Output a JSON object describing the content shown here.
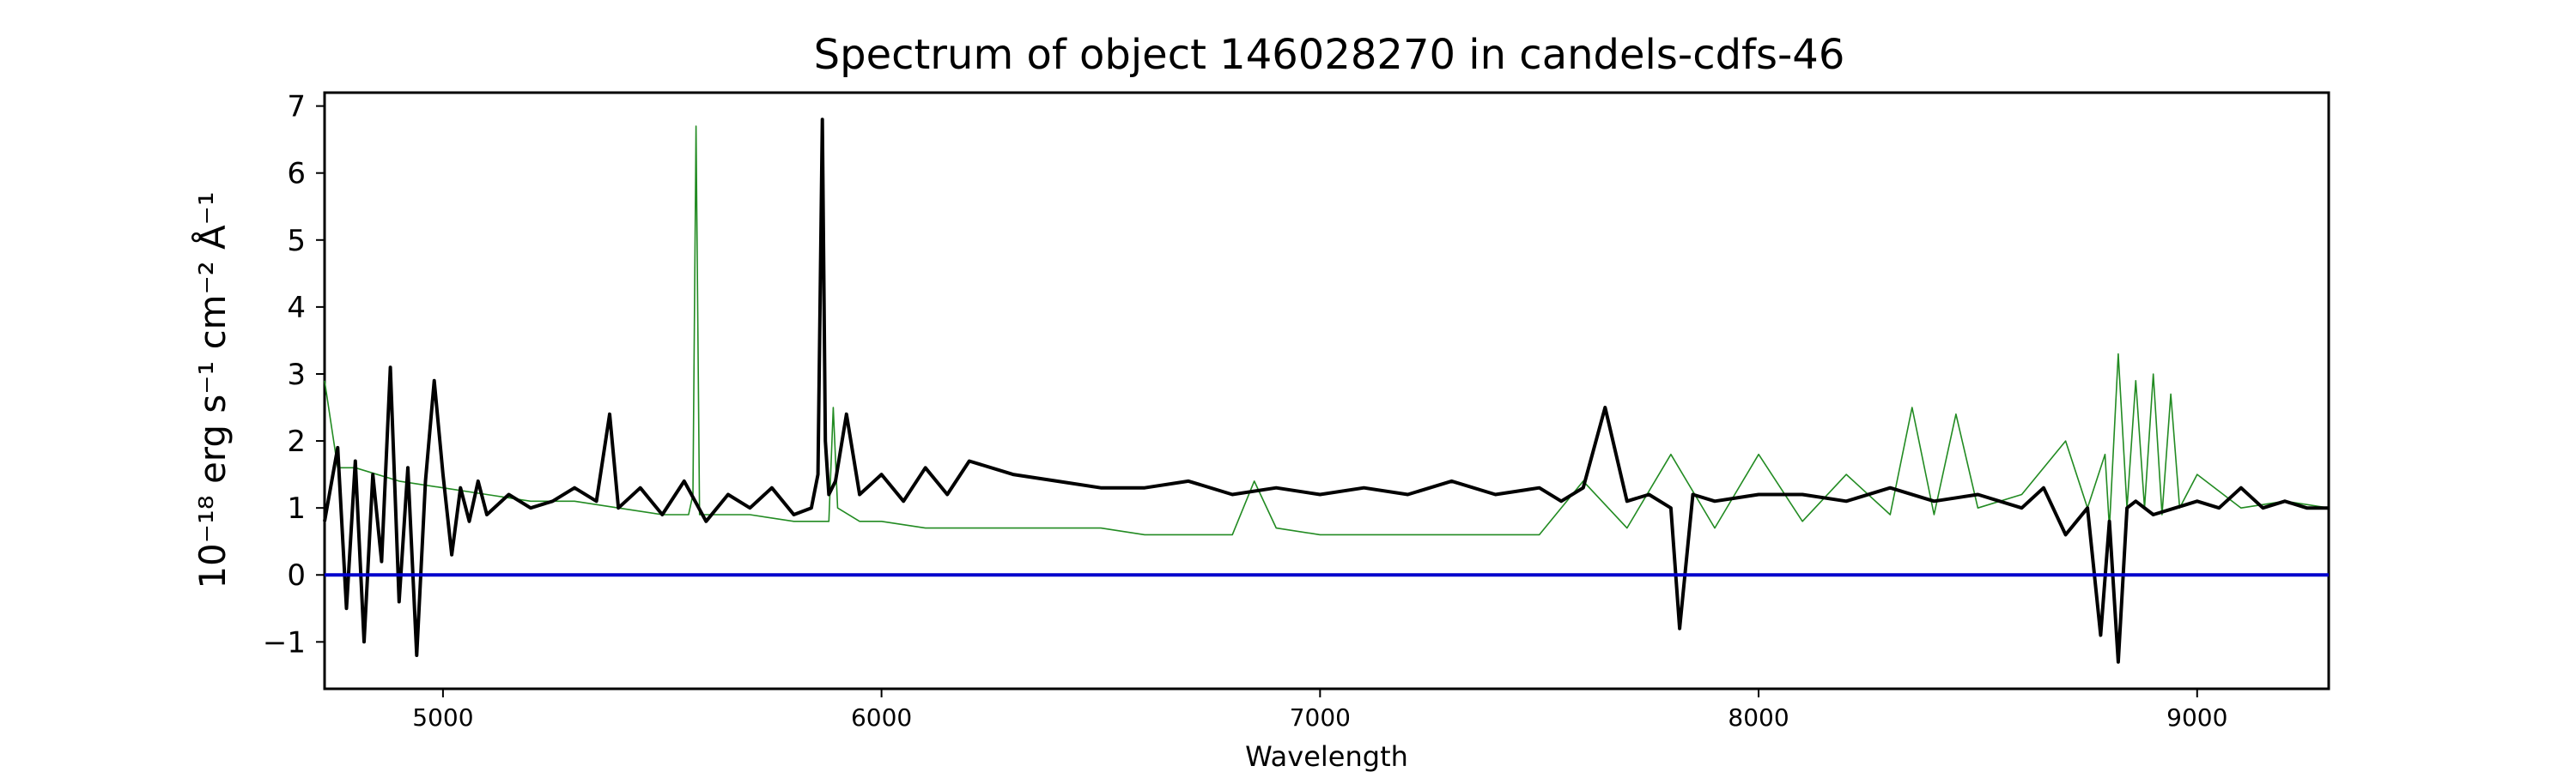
{
  "chart_data": {
    "type": "line",
    "title": "Spectrum of object 146028270 in candels-cdfs-46",
    "xlabel": "Wavelength",
    "ylabel": "10⁻¹⁸ erg s⁻¹ cm⁻² Å⁻¹",
    "xlim": [
      4730,
      9300
    ],
    "ylim": [
      -1.7,
      7.2
    ],
    "xticks": [
      5000,
      6000,
      7000,
      8000,
      9000
    ],
    "yticks": [
      -1,
      0,
      1,
      2,
      3,
      4,
      5,
      6,
      7
    ],
    "grid": false,
    "colors": {
      "spectrum": "#000000",
      "sky": "#228b22",
      "zero": "#0000cc"
    },
    "series": [
      {
        "key": "spectrum",
        "x": [
          4730,
          4760,
          4780,
          4800,
          4820,
          4840,
          4860,
          4880,
          4900,
          4920,
          4940,
          4960,
          4980,
          5000,
          5020,
          5040,
          5060,
          5080,
          5100,
          5150,
          5200,
          5250,
          5300,
          5350,
          5380,
          5400,
          5450,
          5500,
          5550,
          5600,
          5650,
          5700,
          5750,
          5800,
          5840,
          5855,
          5865,
          5872,
          5880,
          5895,
          5920,
          5950,
          6000,
          6050,
          6100,
          6150,
          6200,
          6300,
          6400,
          6500,
          6600,
          6700,
          6800,
          6900,
          7000,
          7100,
          7200,
          7300,
          7400,
          7500,
          7550,
          7600,
          7650,
          7700,
          7750,
          7800,
          7820,
          7850,
          7900,
          8000,
          8100,
          8200,
          8300,
          8400,
          8500,
          8600,
          8650,
          8700,
          8750,
          8780,
          8800,
          8820,
          8840,
          8860,
          8900,
          8950,
          9000,
          9050,
          9100,
          9150,
          9200,
          9250,
          9300
        ],
        "y": [
          0.8,
          1.9,
          -0.5,
          1.7,
          -1.0,
          1.5,
          0.2,
          3.1,
          -0.4,
          1.6,
          -1.2,
          1.4,
          2.9,
          1.5,
          0.3,
          1.3,
          0.8,
          1.4,
          0.9,
          1.2,
          1.0,
          1.1,
          1.3,
          1.1,
          2.4,
          1.0,
          1.3,
          0.9,
          1.4,
          0.8,
          1.2,
          1.0,
          1.3,
          0.9,
          1.0,
          1.5,
          6.8,
          2.0,
          1.2,
          1.4,
          2.4,
          1.2,
          1.5,
          1.1,
          1.6,
          1.2,
          1.7,
          1.5,
          1.4,
          1.3,
          1.3,
          1.4,
          1.2,
          1.3,
          1.2,
          1.3,
          1.2,
          1.4,
          1.2,
          1.3,
          1.1,
          1.3,
          2.5,
          1.1,
          1.2,
          1.0,
          -0.8,
          1.2,
          1.1,
          1.2,
          1.2,
          1.1,
          1.3,
          1.1,
          1.2,
          1.0,
          1.3,
          0.6,
          1.0,
          -0.9,
          0.8,
          -1.3,
          1.0,
          1.1,
          0.9,
          1.0,
          1.1,
          1.0,
          1.3,
          1.0,
          1.1,
          1.0,
          1.0
        ]
      },
      {
        "key": "sky",
        "x": [
          4730,
          4760,
          4800,
          4900,
          5000,
          5100,
          5200,
          5300,
          5400,
          5500,
          5560,
          5570,
          5577,
          5585,
          5600,
          5700,
          5800,
          5880,
          5890,
          5900,
          5950,
          6000,
          6100,
          6200,
          6300,
          6400,
          6500,
          6600,
          6700,
          6800,
          6850,
          6900,
          7000,
          7100,
          7200,
          7300,
          7400,
          7500,
          7600,
          7700,
          7800,
          7900,
          8000,
          8100,
          8200,
          8300,
          8350,
          8400,
          8450,
          8500,
          8600,
          8700,
          8750,
          8790,
          8800,
          8820,
          8840,
          8860,
          8880,
          8900,
          8920,
          8940,
          8960,
          9000,
          9100,
          9200,
          9300
        ],
        "y": [
          2.9,
          1.6,
          1.6,
          1.4,
          1.3,
          1.2,
          1.1,
          1.1,
          1.0,
          0.9,
          0.9,
          1.2,
          6.7,
          0.9,
          0.9,
          0.9,
          0.8,
          0.8,
          2.5,
          1.0,
          0.8,
          0.8,
          0.7,
          0.7,
          0.7,
          0.7,
          0.7,
          0.6,
          0.6,
          0.6,
          1.4,
          0.7,
          0.6,
          0.6,
          0.6,
          0.6,
          0.6,
          0.6,
          1.4,
          0.7,
          1.8,
          0.7,
          1.8,
          0.8,
          1.5,
          0.9,
          2.5,
          0.9,
          2.4,
          1.0,
          1.2,
          2.0,
          1.0,
          1.8,
          0.7,
          3.3,
          1.0,
          2.9,
          1.0,
          3.0,
          0.9,
          2.7,
          1.0,
          1.5,
          1.0,
          1.1,
          1.0
        ]
      }
    ]
  }
}
